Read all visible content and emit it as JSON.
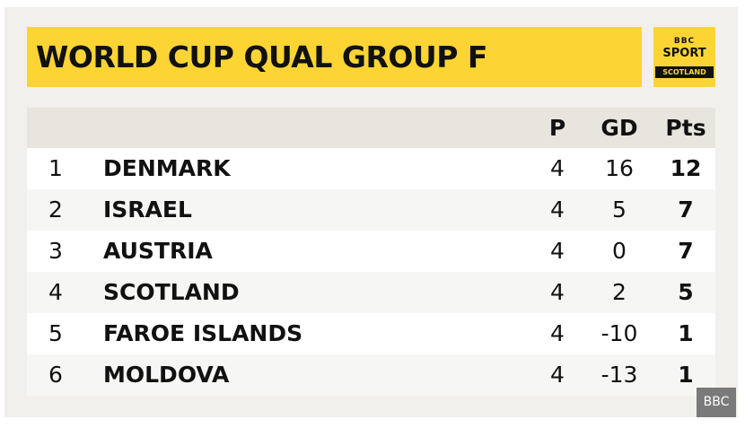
{
  "header": {
    "title": "WORLD CUP QUAL GROUP F"
  },
  "logo": {
    "line1": "BBC",
    "line2": "SPORT",
    "line3": "SCOTLAND"
  },
  "table": {
    "columns": [
      "P",
      "GD",
      "Pts"
    ],
    "rows": [
      [
        1,
        "DENMARK",
        4,
        16,
        12
      ],
      [
        2,
        "ISRAEL",
        4,
        5,
        7
      ],
      [
        3,
        "AUSTRIA",
        4,
        0,
        7
      ],
      [
        4,
        "SCOTLAND",
        4,
        2,
        5
      ],
      [
        5,
        "FAROE ISLANDS",
        4,
        -10,
        1
      ],
      [
        6,
        "MOLDOVA",
        4,
        -13,
        1
      ]
    ]
  },
  "watermark": "BBC"
}
